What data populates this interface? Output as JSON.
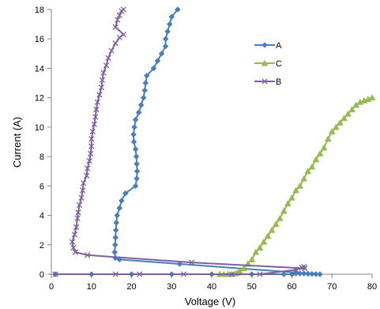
{
  "chart_data": {
    "type": "scatter",
    "title": "",
    "xlabel": "Voltage (V)",
    "ylabel": "Current (A)",
    "xlim": [
      0,
      80
    ],
    "ylim": [
      0,
      18
    ],
    "xticks": [
      0,
      10,
      20,
      30,
      40,
      50,
      60,
      70,
      80
    ],
    "yticks": [
      0,
      2,
      4,
      6,
      8,
      10,
      12,
      14,
      16,
      18
    ],
    "xtick_labels": [
      "0",
      "10",
      "20",
      "30",
      "40",
      "50",
      "60",
      "70",
      "80"
    ],
    "ytick_labels": [
      "0",
      "2",
      "4",
      "6",
      "8",
      "10",
      "12",
      "14",
      "16",
      "18"
    ],
    "grid": false,
    "legend_position": "upper-right",
    "series": [
      {
        "name": "A",
        "color": "#4a7ebb",
        "marker": "diamond",
        "points": [
          [
            1,
            0
          ],
          [
            10,
            0
          ],
          [
            20,
            0
          ],
          [
            30,
            0
          ],
          [
            40,
            0
          ],
          [
            50,
            0
          ],
          [
            58,
            0
          ],
          [
            60,
            0
          ],
          [
            61,
            0.05
          ],
          [
            62,
            0.05
          ],
          [
            63,
            0.05
          ],
          [
            64,
            0.03
          ],
          [
            65,
            0.02
          ],
          [
            66,
            0.01
          ],
          [
            67,
            0
          ],
          [
            32,
            0.7
          ],
          [
            17,
            1.0
          ],
          [
            16,
            1.1
          ],
          [
            15.8,
            1.5
          ],
          [
            15.9,
            2.0
          ],
          [
            16.0,
            2.5
          ],
          [
            16.1,
            3.0
          ],
          [
            16.2,
            3.5
          ],
          [
            16.4,
            4.0
          ],
          [
            17.0,
            4.5
          ],
          [
            17.5,
            5.0
          ],
          [
            18.5,
            5.5
          ],
          [
            21.0,
            6.0
          ],
          [
            21.3,
            6.5
          ],
          [
            21.4,
            7.0
          ],
          [
            21.3,
            7.5
          ],
          [
            21.2,
            8.0
          ],
          [
            21.0,
            8.5
          ],
          [
            20.6,
            9.0
          ],
          [
            20.5,
            9.5
          ],
          [
            20.7,
            10.0
          ],
          [
            21.0,
            10.5
          ],
          [
            21.8,
            11.0
          ],
          [
            22.4,
            11.5
          ],
          [
            23.0,
            12.0
          ],
          [
            23.3,
            12.5
          ],
          [
            23.5,
            13.0
          ],
          [
            23.8,
            13.5
          ],
          [
            25.5,
            14.0
          ],
          [
            26.5,
            14.5
          ],
          [
            27.5,
            15.0
          ],
          [
            28.5,
            15.5
          ],
          [
            28.5,
            16.0
          ],
          [
            29.0,
            16.5
          ],
          [
            29.5,
            17.0
          ],
          [
            30.0,
            17.5
          ],
          [
            31.5,
            18.0
          ]
        ]
      },
      {
        "name": "C",
        "color": "#98b954",
        "marker": "triangle",
        "points": [
          [
            42,
            0
          ],
          [
            43,
            0
          ],
          [
            44,
            0
          ],
          [
            45,
            0
          ],
          [
            46,
            0.05
          ],
          [
            46.5,
            0.1
          ],
          [
            47,
            0.2
          ],
          [
            48,
            0.4
          ],
          [
            49,
            0.7
          ],
          [
            50,
            1.0
          ],
          [
            51,
            1.5
          ],
          [
            52,
            1.8
          ],
          [
            53,
            2.2
          ],
          [
            54,
            2.6
          ],
          [
            55,
            3.0
          ],
          [
            56,
            3.4
          ],
          [
            57,
            3.8
          ],
          [
            58,
            4.3
          ],
          [
            59,
            4.8
          ],
          [
            60,
            5.2
          ],
          [
            61,
            5.7
          ],
          [
            62,
            6.0
          ],
          [
            63,
            6.5
          ],
          [
            64,
            7.0
          ],
          [
            65,
            7.3
          ],
          [
            66,
            7.8
          ],
          [
            67,
            8.2
          ],
          [
            68,
            8.6
          ],
          [
            69,
            9.2
          ],
          [
            70,
            9.7
          ],
          [
            71,
            10.0
          ],
          [
            72,
            10.3
          ],
          [
            73,
            10.6
          ],
          [
            74,
            10.9
          ],
          [
            75,
            11.2
          ],
          [
            76,
            11.5
          ],
          [
            77,
            11.7
          ],
          [
            78,
            11.8
          ],
          [
            79,
            11.9
          ],
          [
            80,
            12.0
          ]
        ]
      },
      {
        "name": "B",
        "color": "#7d60a0",
        "marker": "x",
        "points": [
          [
            1,
            0
          ],
          [
            16,
            0
          ],
          [
            22,
            0
          ],
          [
            33,
            0
          ],
          [
            45,
            0
          ],
          [
            52,
            0
          ],
          [
            61,
            0.3
          ],
          [
            62.5,
            0.45
          ],
          [
            63,
            0.5
          ],
          [
            63.2,
            0.4
          ],
          [
            35,
            0.8
          ],
          [
            9,
            1.3
          ],
          [
            6.0,
            1.5
          ],
          [
            5.5,
            1.8
          ],
          [
            5.2,
            2.2
          ],
          [
            5.8,
            2.7
          ],
          [
            6.2,
            3.2
          ],
          [
            6.5,
            3.8
          ],
          [
            6.7,
            4.2
          ],
          [
            7.0,
            4.7
          ],
          [
            7.5,
            5.2
          ],
          [
            7.8,
            5.7
          ],
          [
            8.0,
            6.2
          ],
          [
            8.8,
            6.7
          ],
          [
            9.0,
            7.2
          ],
          [
            9.5,
            7.7
          ],
          [
            9.8,
            8.2
          ],
          [
            10.0,
            8.7
          ],
          [
            10.0,
            9.2
          ],
          [
            10.3,
            9.7
          ],
          [
            10.7,
            10.2
          ],
          [
            11.0,
            10.7
          ],
          [
            11.2,
            11.2
          ],
          [
            11.5,
            11.7
          ],
          [
            12.0,
            12.2
          ],
          [
            12.5,
            12.7
          ],
          [
            12.7,
            13.2
          ],
          [
            13.0,
            13.7
          ],
          [
            13.7,
            14.2
          ],
          [
            14.2,
            14.7
          ],
          [
            15.0,
            15.2
          ],
          [
            16.0,
            15.7
          ],
          [
            17.0,
            16.1
          ],
          [
            18.0,
            16.3
          ],
          [
            16.0,
            16.8
          ],
          [
            16.5,
            17.3
          ],
          [
            17.0,
            17.6
          ],
          [
            17.5,
            17.9
          ],
          [
            18.0,
            18.0
          ]
        ]
      }
    ]
  }
}
